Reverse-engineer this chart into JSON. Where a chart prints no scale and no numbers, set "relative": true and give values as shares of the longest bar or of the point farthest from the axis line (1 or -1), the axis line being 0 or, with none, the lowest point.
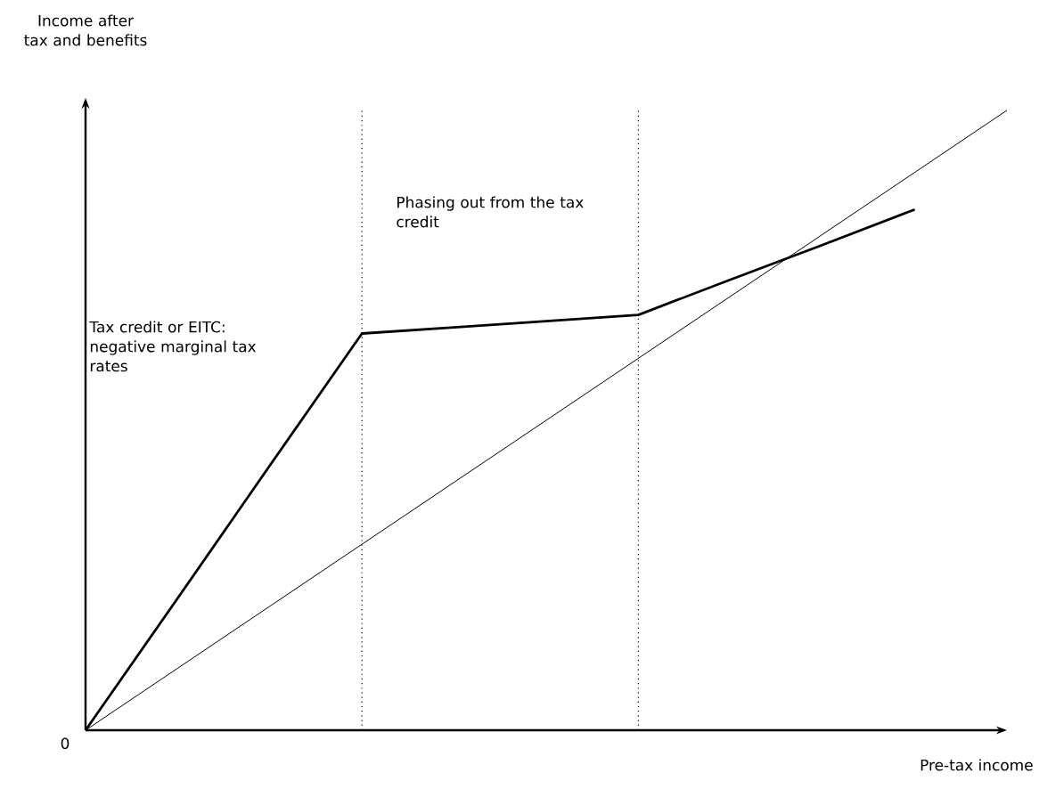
{
  "chart_data": {
    "type": "line",
    "relative": true,
    "xlabel": "Pre-tax income",
    "ylabel": "Income after tax and benefits",
    "categories": [
      null,
      null,
      null,
      null,
      null,
      null,
      null,
      null,
      null,
      null,
      null
    ],
    "marker": "none",
    "line_style": "solid",
    "series": [
      {
        "color": "#000000",
        "values": [
          0,
          0.213,
          0.427,
          0.64,
          0.65,
          0.66,
          0.67,
          0.727,
          0.783,
          0.84,
          null
        ]
      },
      {
        "color": "#000000",
        "values": [
          0,
          0.1,
          0.2,
          0.3,
          0.4,
          0.5,
          0.6,
          0.7,
          0.8,
          0.9,
          1
        ]
      }
    ],
    "annotations": [
      "Tax credit or EITC: negative marginal tax rates",
      "Phasing out from the tax credit",
      "0"
    ]
  }
}
